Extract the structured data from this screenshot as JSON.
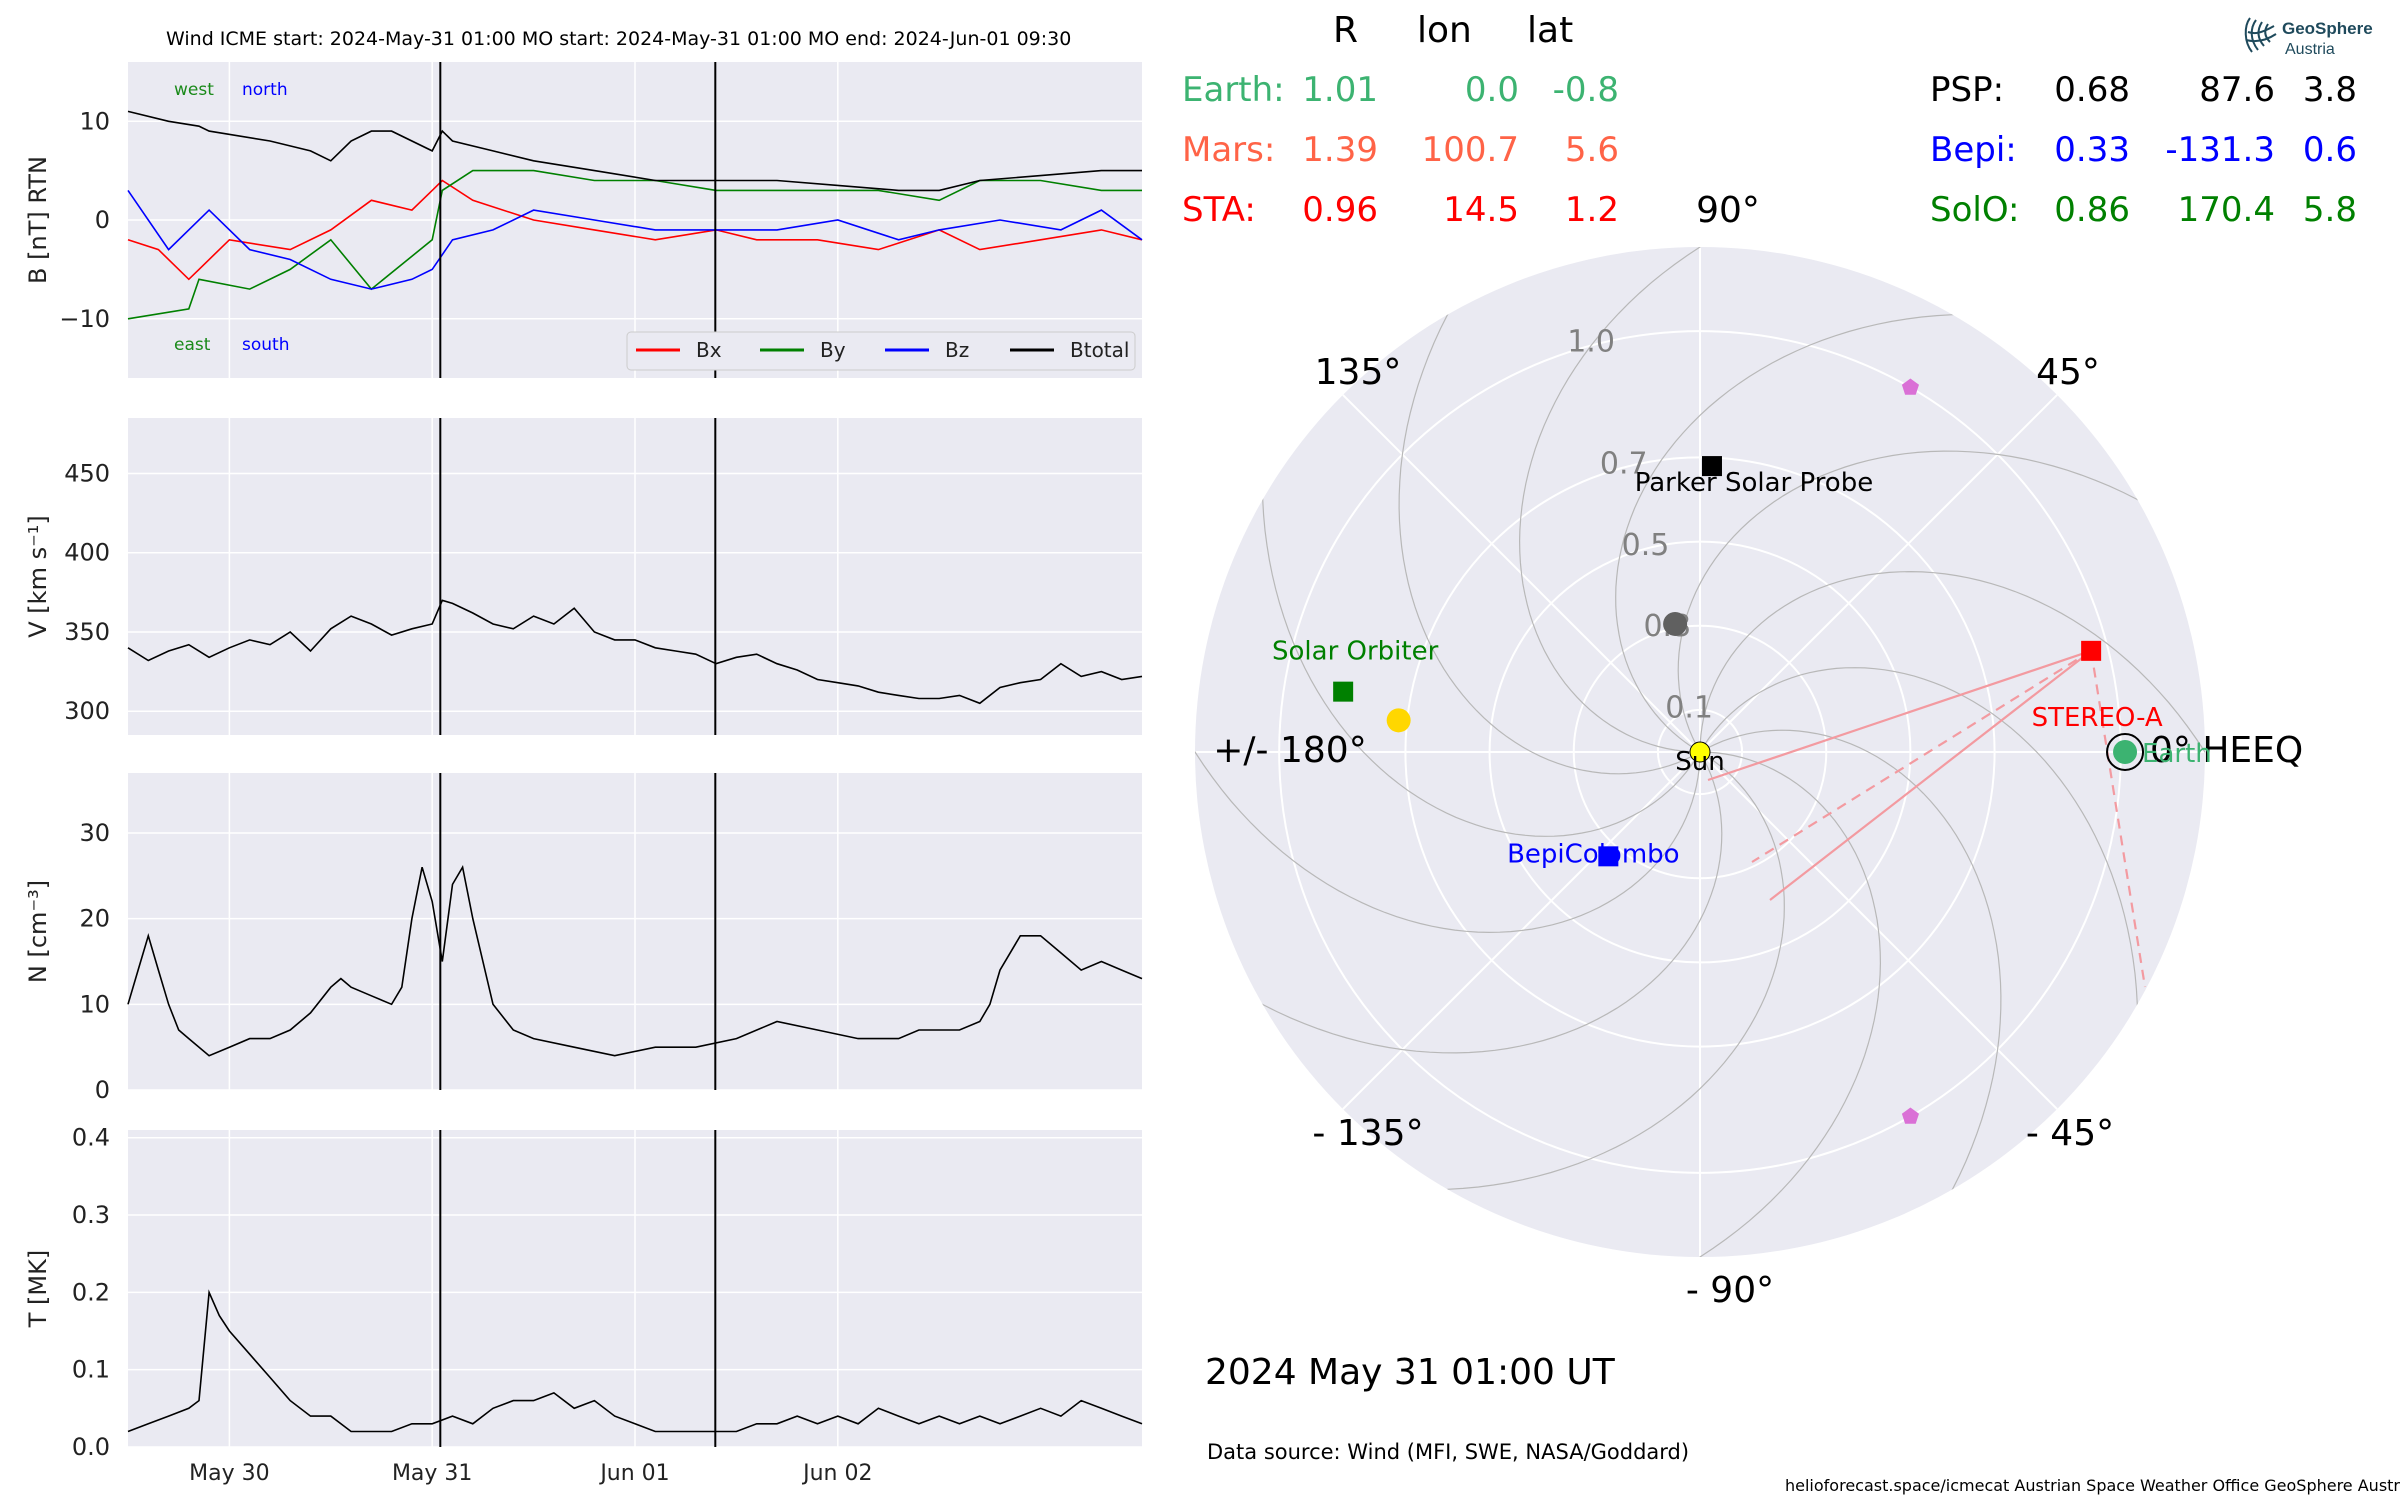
{
  "header": {
    "title": "Wind    ICME start: 2024-May-31 01:00   MO start: 2024-May-31 01:00   MO end: 2024-Jun-01 09:30"
  },
  "chart_data": [
    {
      "type": "line",
      "panel": "B",
      "ylabel": "B [nT] RTN",
      "ylim": [
        -16,
        16
      ],
      "yticks": [
        10,
        0,
        -10
      ],
      "ytick_labels": [
        "10",
        "0",
        "−10"
      ],
      "xlim": [
        0,
        5.0
      ],
      "xticks": [
        0.5,
        1.5,
        2.5,
        3.5
      ],
      "xtick_labels": [
        "May 30",
        "May 31",
        "Jun 01",
        "Jun 02"
      ],
      "x_unit": "days since 2024-May-29 12:00",
      "annotations": [
        {
          "text": "west",
          "color": "#1a8a1a"
        },
        {
          "text": "north",
          "color": "#0000ff"
        },
        {
          "text": "east",
          "color": "#1a8a1a"
        },
        {
          "text": "south",
          "color": "#0000ff"
        }
      ],
      "vlines": [
        1.54,
        2.896
      ],
      "legend": {
        "placement": "lower-right",
        "entries": [
          {
            "label": "Bx",
            "color": "#ff0000"
          },
          {
            "label": "By",
            "color": "#008000"
          },
          {
            "label": "Bz",
            "color": "#0000ff"
          },
          {
            "label": "Btotal",
            "color": "#000000"
          }
        ]
      },
      "series": [
        {
          "name": "Bx",
          "color": "#ff0000",
          "x": [
            0,
            0.15,
            0.3,
            0.35,
            0.5,
            0.8,
            1.0,
            1.2,
            1.4,
            1.5,
            1.55,
            1.7,
            2.0,
            2.3,
            2.6,
            2.9,
            3.1,
            3.4,
            3.7,
            4.0,
            4.2,
            4.5,
            4.8,
            5.0
          ],
          "y": [
            -2,
            -3,
            -6,
            -5,
            -2,
            -3,
            -1,
            2,
            1,
            3,
            4,
            2,
            0,
            -1,
            -2,
            -1,
            -2,
            -2,
            -3,
            -1,
            -3,
            -2,
            -1,
            -2
          ]
        },
        {
          "name": "By",
          "color": "#008000",
          "x": [
            0,
            0.3,
            0.35,
            0.6,
            0.8,
            1.0,
            1.2,
            1.5,
            1.55,
            1.7,
            2.0,
            2.3,
            2.6,
            2.9,
            3.1,
            3.4,
            3.7,
            4.0,
            4.2,
            4.5,
            4.8,
            5.0
          ],
          "y": [
            -10,
            -9,
            -6,
            -7,
            -5,
            -2,
            -7,
            -2,
            3,
            5,
            5,
            4,
            4,
            3,
            3,
            3,
            3,
            2,
            4,
            4,
            3,
            3
          ]
        },
        {
          "name": "Bz",
          "color": "#0000ff",
          "x": [
            0,
            0.2,
            0.4,
            0.6,
            0.8,
            1.0,
            1.2,
            1.4,
            1.5,
            1.6,
            1.8,
            2.0,
            2.3,
            2.6,
            2.9,
            3.2,
            3.5,
            3.8,
            4.0,
            4.3,
            4.6,
            4.8,
            5.0
          ],
          "y": [
            3,
            -3,
            1,
            -3,
            -4,
            -6,
            -7,
            -6,
            -5,
            -2,
            -1,
            1,
            0,
            -1,
            -1,
            -1,
            0,
            -2,
            -1,
            0,
            -1,
            1,
            -2
          ]
        },
        {
          "name": "Btotal",
          "color": "#000000",
          "x": [
            0,
            0.2,
            0.35,
            0.4,
            0.7,
            0.9,
            1.0,
            1.1,
            1.2,
            1.3,
            1.5,
            1.55,
            1.6,
            1.8,
            2.0,
            2.3,
            2.6,
            2.9,
            3.2,
            3.5,
            3.8,
            4.0,
            4.2,
            4.5,
            4.8,
            5.0
          ],
          "y": [
            11,
            10,
            9.5,
            9,
            8,
            7,
            6,
            8,
            9,
            9,
            7,
            9,
            8,
            7,
            6,
            5,
            4,
            4,
            4,
            3.5,
            3,
            3,
            4,
            4.5,
            5,
            5
          ]
        }
      ]
    },
    {
      "type": "line",
      "panel": "V",
      "ylabel": "V [km s⁻¹]",
      "ylim": [
        285,
        485
      ],
      "yticks": [
        450,
        400,
        350,
        300
      ],
      "xlim": [
        0,
        5.0
      ],
      "xticks": [
        0.5,
        1.5,
        2.5,
        3.5
      ],
      "vlines": [
        1.54,
        2.896
      ],
      "series": [
        {
          "name": "V",
          "color": "#000000",
          "x": [
            0,
            0.1,
            0.2,
            0.3,
            0.4,
            0.5,
            0.6,
            0.7,
            0.8,
            0.9,
            1.0,
            1.1,
            1.2,
            1.3,
            1.4,
            1.5,
            1.55,
            1.6,
            1.7,
            1.8,
            1.9,
            2.0,
            2.1,
            2.2,
            2.3,
            2.4,
            2.5,
            2.6,
            2.7,
            2.8,
            2.9,
            3.0,
            3.1,
            3.2,
            3.3,
            3.4,
            3.5,
            3.6,
            3.7,
            3.8,
            3.9,
            4.0,
            4.1,
            4.2,
            4.3,
            4.4,
            4.5,
            4.6,
            4.7,
            4.8,
            4.9,
            5.0
          ],
          "y": [
            340,
            332,
            338,
            342,
            334,
            340,
            345,
            342,
            350,
            338,
            352,
            360,
            355,
            348,
            352,
            355,
            370,
            368,
            362,
            355,
            352,
            360,
            355,
            365,
            350,
            345,
            345,
            340,
            338,
            336,
            330,
            334,
            336,
            330,
            326,
            320,
            318,
            316,
            312,
            310,
            308,
            308,
            310,
            305,
            315,
            318,
            320,
            330,
            322,
            325,
            320,
            322
          ]
        }
      ]
    },
    {
      "type": "line",
      "panel": "N",
      "ylabel": "N [cm⁻³]",
      "ylim": [
        0,
        37
      ],
      "yticks": [
        30,
        20,
        10,
        0
      ],
      "xlim": [
        0,
        5.0
      ],
      "xticks": [
        0.5,
        1.5,
        2.5,
        3.5
      ],
      "vlines": [
        1.54,
        2.896
      ],
      "series": [
        {
          "name": "N",
          "color": "#000000",
          "x": [
            0,
            0.05,
            0.1,
            0.15,
            0.2,
            0.25,
            0.3,
            0.4,
            0.5,
            0.6,
            0.7,
            0.8,
            0.9,
            1.0,
            1.05,
            1.1,
            1.2,
            1.3,
            1.35,
            1.4,
            1.45,
            1.5,
            1.55,
            1.6,
            1.65,
            1.7,
            1.8,
            1.9,
            2.0,
            2.2,
            2.4,
            2.6,
            2.8,
            3.0,
            3.2,
            3.4,
            3.6,
            3.8,
            3.9,
            4.0,
            4.1,
            4.2,
            4.25,
            4.3,
            4.4,
            4.5,
            4.6,
            4.7,
            4.8,
            4.9,
            5.0
          ],
          "y": [
            10,
            14,
            18,
            14,
            10,
            7,
            6,
            4,
            5,
            6,
            6,
            7,
            9,
            12,
            13,
            12,
            11,
            10,
            12,
            20,
            26,
            22,
            15,
            24,
            26,
            20,
            10,
            7,
            6,
            5,
            4,
            5,
            5,
            6,
            8,
            7,
            6,
            6,
            7,
            7,
            7,
            8,
            10,
            14,
            18,
            18,
            16,
            14,
            15,
            14,
            13
          ]
        }
      ]
    },
    {
      "type": "line",
      "panel": "T",
      "ylabel": "T [MK]",
      "ylim": [
        0,
        0.41
      ],
      "yticks": [
        0.4,
        0.3,
        0.2,
        0.1,
        0.0
      ],
      "xlim": [
        0,
        5.0
      ],
      "xticks": [
        0.5,
        1.5,
        2.5,
        3.5
      ],
      "xtick_labels": [
        "May 30",
        "May 31",
        "Jun 01",
        "Jun 02"
      ],
      "vlines": [
        1.54,
        2.896
      ],
      "series": [
        {
          "name": "T",
          "color": "#000000",
          "x": [
            0,
            0.1,
            0.2,
            0.3,
            0.35,
            0.4,
            0.45,
            0.5,
            0.6,
            0.7,
            0.8,
            0.9,
            1.0,
            1.1,
            1.2,
            1.3,
            1.4,
            1.5,
            1.6,
            1.7,
            1.8,
            1.9,
            2.0,
            2.1,
            2.2,
            2.3,
            2.4,
            2.5,
            2.6,
            2.7,
            2.8,
            2.9,
            3.0,
            3.1,
            3.2,
            3.3,
            3.4,
            3.5,
            3.6,
            3.7,
            3.8,
            3.9,
            4.0,
            4.1,
            4.2,
            4.3,
            4.4,
            4.5,
            4.6,
            4.7,
            4.8,
            4.9,
            5.0
          ],
          "y": [
            0.02,
            0.03,
            0.04,
            0.05,
            0.06,
            0.2,
            0.17,
            0.15,
            0.12,
            0.09,
            0.06,
            0.04,
            0.04,
            0.02,
            0.02,
            0.02,
            0.03,
            0.03,
            0.04,
            0.03,
            0.05,
            0.06,
            0.06,
            0.07,
            0.05,
            0.06,
            0.04,
            0.03,
            0.02,
            0.02,
            0.02,
            0.02,
            0.02,
            0.03,
            0.03,
            0.04,
            0.03,
            0.04,
            0.03,
            0.05,
            0.04,
            0.03,
            0.04,
            0.03,
            0.04,
            0.03,
            0.04,
            0.05,
            0.04,
            0.06,
            0.05,
            0.04,
            0.03
          ]
        }
      ]
    },
    {
      "type": "scatter",
      "panel": "polar",
      "coordinates": "HEEQ polar (r in AU, longitude in degrees)",
      "rlim": [
        0,
        1.2
      ],
      "r_ticks": [
        0.1,
        0.3,
        0.5,
        0.7,
        1.0
      ],
      "angle_labels": [
        "0° HEEQ",
        "45°",
        "90°",
        "135°",
        "+/- 180°",
        "- 135°",
        "- 90°",
        "- 45°"
      ],
      "angle_values": [
        0,
        45,
        90,
        135,
        180,
        -135,
        -90,
        -45
      ],
      "points": [
        {
          "name": "Sun",
          "r": 0.0,
          "lon": 0.0,
          "color": "#ffff00",
          "marker": "circle",
          "label": "Sun",
          "label_color": "#000000"
        },
        {
          "name": "Earth",
          "r": 1.01,
          "lon": 0.0,
          "color": "#3cb371",
          "marker": "circle",
          "label": "Earth",
          "label_color": "#3cb371"
        },
        {
          "name": "STEREO-A",
          "r": 0.96,
          "lon": 14.5,
          "color": "#ff0000",
          "marker": "square",
          "label": "STEREO-A",
          "label_color": "#ff0000"
        },
        {
          "name": "Parker Solar Probe",
          "r": 0.68,
          "lon": 87.6,
          "color": "#000000",
          "marker": "square",
          "label": "Parker Solar Probe",
          "label_color": "#000000"
        },
        {
          "name": "BepiColombo",
          "r": 0.33,
          "lon": -131.3,
          "color": "#0000ff",
          "marker": "square",
          "label": "BepiColombo",
          "label_color": "#0000ff"
        },
        {
          "name": "Solar Orbiter",
          "r": 0.86,
          "lon": 170.4,
          "color": "#008000",
          "marker": "square",
          "label": "Solar Orbiter",
          "label_color": "#008000"
        },
        {
          "name": "Venus",
          "r": 0.72,
          "lon": 174.0,
          "color": "#ffd700",
          "marker": "circle"
        },
        {
          "name": "Mercury",
          "r": 0.31,
          "lon": 101.0,
          "color": "#606060",
          "marker": "circle"
        },
        {
          "name": "L4",
          "r": 1.0,
          "lon": 60.0,
          "color": "#da70d6",
          "marker": "pentagon"
        },
        {
          "name": "L5",
          "r": 1.0,
          "lon": -60.0,
          "color": "#da70d6",
          "marker": "pentagon"
        }
      ]
    }
  ],
  "positions": {
    "headers": [
      "R",
      "lon",
      "lat"
    ],
    "left": [
      {
        "name": "Earth:",
        "r": "1.01",
        "lon": "0.0",
        "lat": "-0.8",
        "color": "#3cb371"
      },
      {
        "name": "Mars:",
        "r": "1.39",
        "lon": "100.7",
        "lat": "5.6",
        "color": "#ff6347"
      },
      {
        "name": "STA:",
        "r": "0.96",
        "lon": "14.5",
        "lat": "1.2",
        "color": "#ff0000"
      }
    ],
    "right": [
      {
        "name": "PSP:",
        "r": "0.68",
        "lon": "87.6",
        "lat": "3.8",
        "color": "#000000"
      },
      {
        "name": "Bepi:",
        "r": "0.33",
        "lon": "-131.3",
        "lat": "0.6",
        "color": "#0000ff"
      },
      {
        "name": "SolO:",
        "r": "0.86",
        "lon": "170.4",
        "lat": "5.8",
        "color": "#008000"
      }
    ]
  },
  "datetime": "2024 May 31  01:00 UT",
  "data_source": "Data source: Wind (MFI, SWE, NASA/Goddard)",
  "footer": "helioforecast.space/icmecat   Austrian Space Weather Office   GeoSphere Austria",
  "logo": {
    "line1": "GeoSphere",
    "line2": "Austria"
  },
  "colors": {
    "panel_bg": "#eaeaf2",
    "grid": "#ffffff",
    "polar_grid": "#b8b8b8"
  }
}
